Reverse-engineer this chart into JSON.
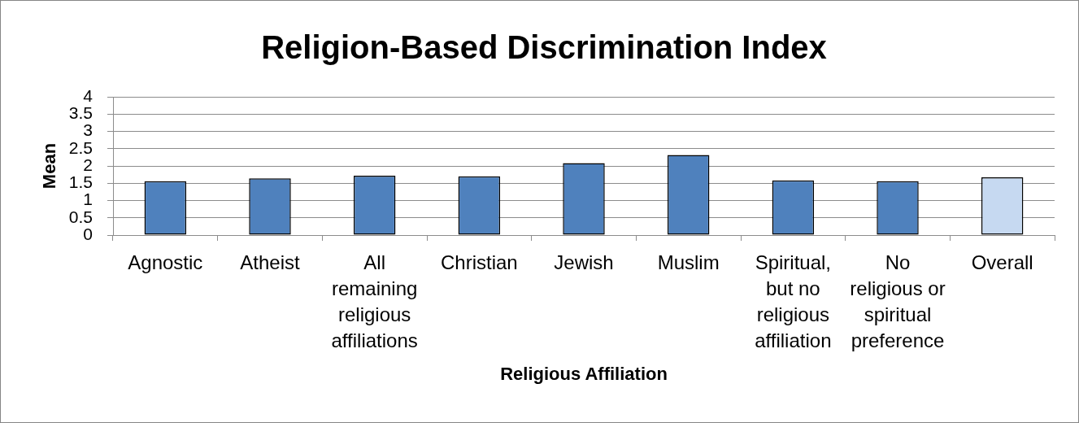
{
  "chart_data": {
    "type": "bar",
    "title": "Religion-Based Discrimination Index",
    "xlabel": "Religious Affiliation",
    "ylabel": "Mean",
    "categories": [
      "Agnostic",
      "Atheist",
      "All remaining religious affiliations",
      "Christian",
      "Jewish",
      "Muslim",
      "Spiritual, but no religious affiliation",
      "No religious or spiritual preference",
      "Overall"
    ],
    "values": [
      1.56,
      1.64,
      1.72,
      1.7,
      2.08,
      2.32,
      1.58,
      1.56,
      1.67
    ],
    "colors": [
      "#4f81bd",
      "#4f81bd",
      "#4f81bd",
      "#4f81bd",
      "#4f81bd",
      "#4f81bd",
      "#4f81bd",
      "#4f81bd",
      "#c6d9f1"
    ],
    "ylim": [
      0,
      4
    ],
    "yticks": [
      0,
      0.5,
      1,
      1.5,
      2,
      2.5,
      3,
      3.5,
      4
    ],
    "grid": "y"
  }
}
